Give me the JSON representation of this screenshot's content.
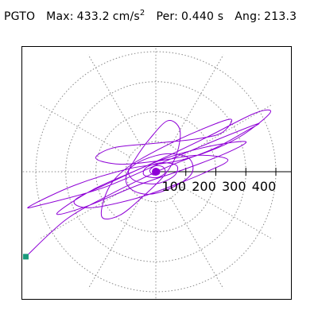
{
  "header": {
    "station": "PGTO",
    "max_label": "Max:",
    "max_value": "433.2",
    "max_unit": "cm/s",
    "max_unit_exp": "2",
    "per_label": "Per:",
    "per_value": "0.440 s",
    "ang_label": "Ang:",
    "ang_value": "213.3"
  },
  "colors": {
    "trace": "#8e00d6",
    "marker": "#1a9a7c",
    "grid": "#888888",
    "axis": "#000000"
  },
  "chart_data": {
    "type": "scatter",
    "title": "",
    "polar": true,
    "radial_ticks": [
      {
        "value": 100,
        "label": "100"
      },
      {
        "value": 200,
        "label": "200"
      },
      {
        "value": 300,
        "label": "300"
      },
      {
        "value": 400,
        "label": "400"
      }
    ],
    "r_max": 450,
    "spokes_deg": [
      0,
      30,
      60,
      90,
      120,
      150,
      180,
      210,
      240,
      270,
      300,
      330
    ],
    "grid": true,
    "series": [
      {
        "marker_end": [
          -433.2,
          -283.1
        ],
        "points": [
          [
            -433.2,
            -283.1
          ],
          [
            -300.0,
            -160.0
          ],
          [
            -160.0,
            -80.0
          ],
          [
            -40.0,
            -20.0
          ],
          [
            60.0,
            25.0
          ],
          [
            200.0,
            80.0
          ],
          [
            300.0,
            135.0
          ],
          [
            340.0,
            160.0
          ],
          [
            200.0,
            105.0
          ],
          [
            20.0,
            30.0
          ],
          [
            -180.0,
            -55.0
          ],
          [
            -380.0,
            -110.0
          ],
          [
            -420.0,
            -115.0
          ],
          [
            -270.0,
            -45.0
          ],
          [
            -90.0,
            10.0
          ],
          [
            90.0,
            40.0
          ],
          [
            260.0,
            105.0
          ],
          [
            380.0,
            195.0
          ],
          [
            330.0,
            195.0
          ],
          [
            160.0,
            110.0
          ],
          [
            -30.0,
            20.0
          ],
          [
            -210.0,
            -60.0
          ],
          [
            -330.0,
            -140.0
          ],
          [
            -230.0,
            -115.0
          ],
          [
            -60.0,
            -45.0
          ],
          [
            100.0,
            10.0
          ],
          [
            230.0,
            60.0
          ],
          [
            300.0,
            100.0
          ],
          [
            180.0,
            85.0
          ],
          [
            20.0,
            40.0
          ],
          [
            -150.0,
            -35.0
          ],
          [
            -270.0,
            -95.0
          ],
          [
            -220.0,
            -120.0
          ],
          [
            -70.0,
            -90.0
          ],
          [
            60.0,
            -45.0
          ],
          [
            170.0,
            0.0
          ],
          [
            240.0,
            40.0
          ],
          [
            140.0,
            55.0
          ],
          [
            0.0,
            35.0
          ],
          [
            -120.0,
            25.0
          ],
          [
            -200.0,
            45.0
          ],
          [
            -140.0,
            80.0
          ],
          [
            0.0,
            95.0
          ],
          [
            140.0,
            110.0
          ],
          [
            220.0,
            130.0
          ],
          [
            250.0,
            175.0
          ],
          [
            150.0,
            140.0
          ],
          [
            20.0,
            80.0
          ],
          [
            -100.0,
            10.0
          ],
          [
            -160.0,
            -60.0
          ],
          [
            -180.0,
            -150.0
          ],
          [
            -120.0,
            -145.0
          ],
          [
            -40.0,
            -80.0
          ],
          [
            30.0,
            -10.0
          ],
          [
            70.0,
            60.0
          ],
          [
            80.0,
            140.0
          ],
          [
            40.0,
            170.0
          ],
          [
            -20.0,
            110.0
          ],
          [
            -70.0,
            40.0
          ],
          [
            -100.0,
            -20.0
          ],
          [
            -80.0,
            -60.0
          ],
          [
            -20.0,
            -75.0
          ],
          [
            60.0,
            -50.0
          ],
          [
            120.0,
            -5.0
          ],
          [
            110.0,
            45.0
          ],
          [
            40.0,
            60.0
          ],
          [
            -40.0,
            40.0
          ],
          [
            -90.0,
            5.0
          ],
          [
            -70.0,
            -30.0
          ],
          [
            0.0,
            -40.0
          ],
          [
            60.0,
            -15.0
          ],
          [
            70.0,
            20.0
          ],
          [
            20.0,
            30.0
          ],
          [
            -30.0,
            15.0
          ],
          [
            -40.0,
            -10.0
          ],
          [
            0.0,
            -20.0
          ],
          [
            30.0,
            -5.0
          ],
          [
            25.0,
            15.0
          ],
          [
            0.0,
            20.0
          ],
          [
            -20.0,
            5.0
          ],
          [
            -10.0,
            -10.0
          ],
          [
            10.0,
            -8.0
          ],
          [
            12.0,
            6.0
          ],
          [
            0.0,
            10.0
          ],
          [
            -8.0,
            2.0
          ],
          [
            0.0,
            -4.0
          ],
          [
            4.0,
            2.0
          ],
          [
            0.0,
            0.0
          ]
        ]
      }
    ]
  }
}
